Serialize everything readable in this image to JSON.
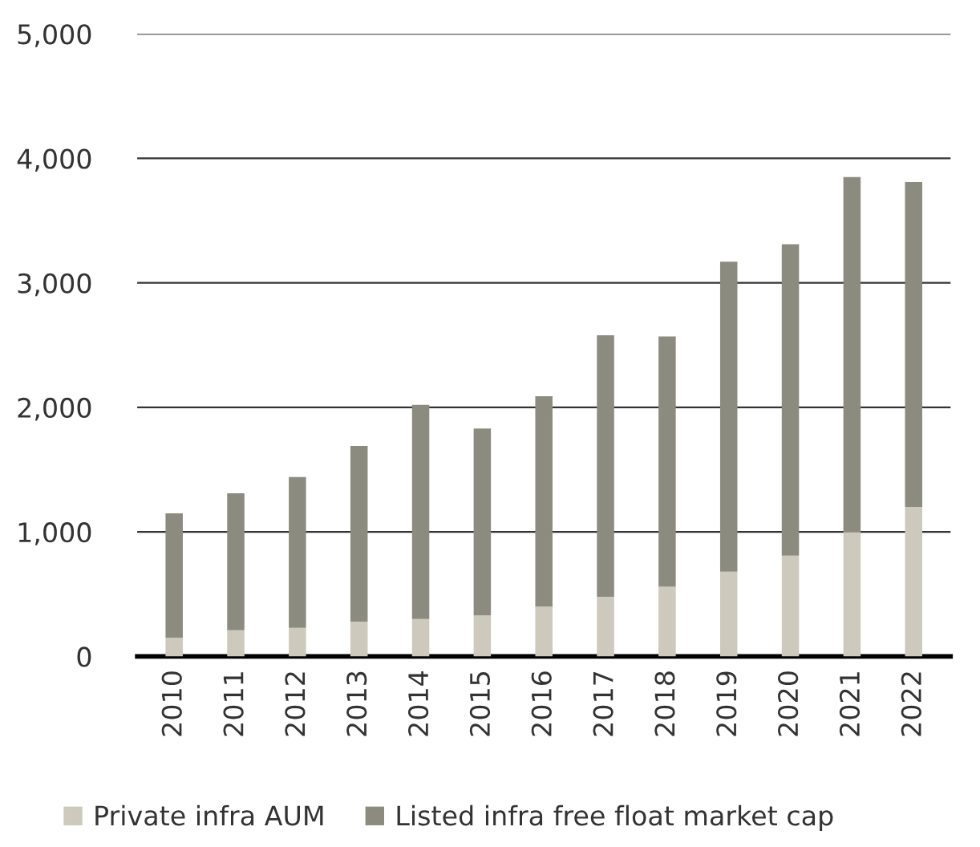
{
  "chart_data": {
    "type": "bar",
    "stacked": true,
    "categories": [
      "2010",
      "2011",
      "2012",
      "2013",
      "2014",
      "2015",
      "2016",
      "2017",
      "2018",
      "2019",
      "2020",
      "2021",
      "2022"
    ],
    "series": [
      {
        "name": "Private infra AUM",
        "color": "#cdc9bd",
        "values": [
          150,
          210,
          230,
          280,
          300,
          330,
          400,
          480,
          560,
          680,
          810,
          1000,
          1200
        ]
      },
      {
        "name": "Listed infra free float market cap",
        "color": "#8c8b80",
        "values": [
          1000,
          1100,
          1210,
          1410,
          1720,
          1500,
          1690,
          2100,
          2010,
          2490,
          2500,
          2850,
          2610
        ]
      }
    ],
    "ylim": [
      0,
      5000
    ],
    "yticks": [
      {
        "value": 0,
        "label": "0"
      },
      {
        "value": 1000,
        "label": "1,000"
      },
      {
        "value": 2000,
        "label": "2,000"
      },
      {
        "value": 3000,
        "label": "3,000"
      },
      {
        "value": 4000,
        "label": "4,000"
      },
      {
        "value": 5000,
        "label": "5,000"
      }
    ],
    "grid": "y",
    "legend": "bottom"
  }
}
